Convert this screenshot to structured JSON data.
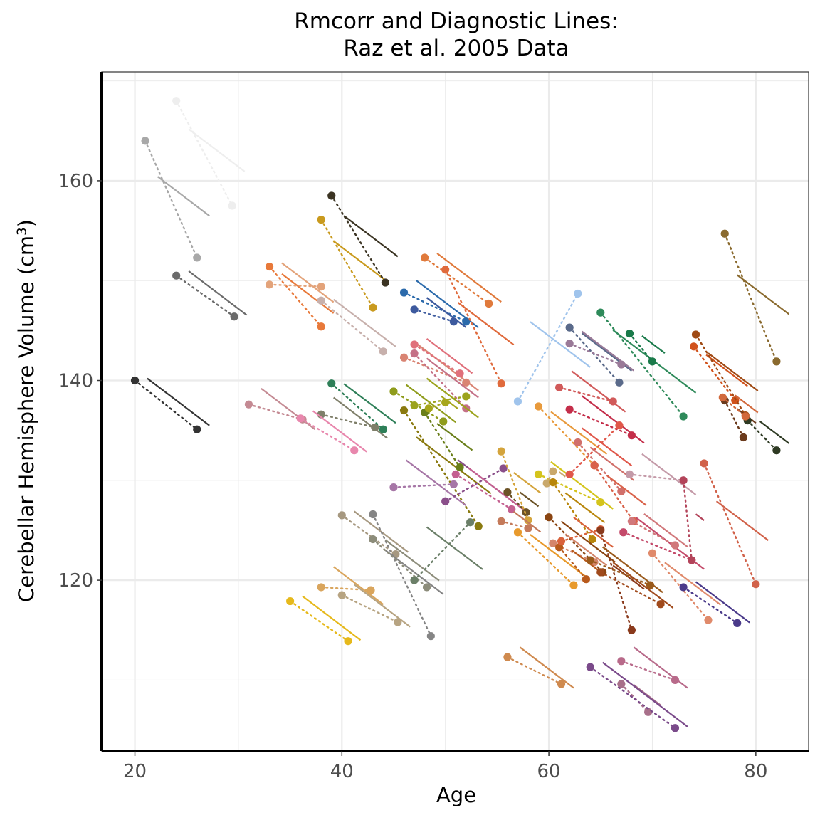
{
  "chart_data": {
    "type": "scatter",
    "title": [
      "Rmcorr and Diagnostic Lines:",
      "Raz et al. 2005 Data"
    ],
    "xlabel": "Age",
    "ylabel": "Cerebellar Hemisphere Volume (cm",
    "ylabel_sup": "3",
    "ylabel_suffix": ")",
    "xlim": [
      16.8,
      85.1
    ],
    "ylim": [
      102.9,
      170.9
    ],
    "xticks": [
      20,
      40,
      60,
      80
    ],
    "yticks": [
      120,
      140,
      160
    ],
    "grid": true,
    "legend": "none",
    "subjects": [
      {
        "color": "#333333",
        "p": [
          [
            20,
            140
          ],
          [
            26,
            135.1
          ]
        ]
      },
      {
        "color": "#a8a8a8",
        "p": [
          [
            21,
            164
          ],
          [
            26,
            152.3
          ]
        ]
      },
      {
        "color": "#eeeeee",
        "p": [
          [
            24,
            168
          ],
          [
            29.4,
            157.5
          ]
        ]
      },
      {
        "color": "#6b6b6b",
        "p": [
          [
            24,
            150.5
          ],
          [
            29.6,
            146.4
          ]
        ]
      },
      {
        "color": "#c48a93",
        "p": [
          [
            31,
            137.6
          ],
          [
            36.2,
            136.1
          ]
        ]
      },
      {
        "color": "#e8793a",
        "p": [
          [
            33,
            151.4
          ],
          [
            38,
            145.4
          ]
        ]
      },
      {
        "color": "#e3a37a",
        "p": [
          [
            33,
            149.6
          ],
          [
            38,
            149.4
          ]
        ]
      },
      {
        "color": "#d9a55d",
        "p": [
          [
            38,
            119.3
          ],
          [
            42.8,
            119
          ]
        ]
      },
      {
        "color": "#c99a1e",
        "p": [
          [
            38,
            156.1
          ],
          [
            43,
            147.3
          ]
        ]
      },
      {
        "color": "#7f7f6a",
        "p": [
          [
            38,
            136.6
          ],
          [
            43.2,
            135.3
          ]
        ]
      },
      {
        "color": "#e887ad",
        "p": [
          [
            36,
            136.2
          ],
          [
            41.2,
            133
          ]
        ]
      },
      {
        "color": "#e6b91c",
        "p": [
          [
            35,
            117.9
          ],
          [
            40.6,
            113.9
          ]
        ]
      },
      {
        "color": "#c7b0ac",
        "p": [
          [
            38,
            148
          ],
          [
            44,
            142.9
          ]
        ]
      },
      {
        "color": "#3b3423",
        "p": [
          [
            39,
            158.5
          ],
          [
            44.2,
            149.8
          ]
        ]
      },
      {
        "color": "#2e7f58",
        "p": [
          [
            39,
            139.7
          ],
          [
            44,
            135.1
          ]
        ]
      },
      {
        "color": "#b7a482",
        "p": [
          [
            40,
            118.5
          ],
          [
            45.4,
            115.8
          ]
        ]
      },
      {
        "color": "#a69880",
        "p": [
          [
            40,
            126.5
          ],
          [
            45.2,
            122.6
          ]
        ]
      },
      {
        "color": "#858585",
        "p": [
          [
            43,
            126.6
          ],
          [
            48.6,
            114.4
          ]
        ]
      },
      {
        "color": "#8c8c7a",
        "p": [
          [
            43,
            124.1
          ],
          [
            48.2,
            119.3
          ]
        ]
      },
      {
        "color": "#2b6aab",
        "p": [
          [
            46,
            148.8
          ],
          [
            52,
            145.9
          ]
        ]
      },
      {
        "color": "#3d5a9e",
        "p": [
          [
            47,
            147.1
          ],
          [
            50.8,
            145.9
          ]
        ]
      },
      {
        "color": "#e07a3c",
        "p": [
          [
            48,
            152.3
          ],
          [
            54.2,
            147.7
          ]
        ]
      },
      {
        "color": "#e06a3c",
        "p": [
          [
            50,
            151.1
          ],
          [
            55.4,
            139.7
          ]
        ]
      },
      {
        "color": "#d98473",
        "p": [
          [
            46,
            142.3
          ],
          [
            52,
            139.8
          ]
        ]
      },
      {
        "color": "#e0707b",
        "p": [
          [
            47,
            143.6
          ],
          [
            51.4,
            140.7
          ]
        ]
      },
      {
        "color": "#c47086",
        "p": [
          [
            47,
            142.7
          ],
          [
            52,
            137.2
          ]
        ]
      },
      {
        "color": "#8f9c1c",
        "p": [
          [
            45,
            138.9
          ],
          [
            49.8,
            135.9
          ]
        ]
      },
      {
        "color": "#8a7a0f",
        "p": [
          [
            46,
            137
          ],
          [
            53.2,
            125.4
          ]
        ]
      },
      {
        "color": "#9ca31c",
        "p": [
          [
            47,
            137.5
          ],
          [
            52,
            138.4
          ]
        ]
      },
      {
        "color": "#6a7f1a",
        "p": [
          [
            48,
            136.8
          ],
          [
            51.4,
            131.3
          ]
        ]
      },
      {
        "color": "#a6a61c",
        "p": [
          [
            48.4,
            137.2
          ],
          [
            50,
            137.8
          ]
        ]
      },
      {
        "color": "#a676a6",
        "p": [
          [
            45,
            129.3
          ],
          [
            50.8,
            129.6
          ]
        ]
      },
      {
        "color": "#8a4f8a",
        "p": [
          [
            50,
            127.9
          ],
          [
            55.6,
            131.2
          ]
        ]
      },
      {
        "color": "#c46090",
        "p": [
          [
            51,
            130.6
          ],
          [
            56.4,
            127.1
          ]
        ]
      },
      {
        "color": "#6b7f68",
        "p": [
          [
            47,
            120
          ],
          [
            52.4,
            125.8
          ]
        ]
      },
      {
        "color": "#6b5226",
        "p": [
          [
            56,
            128.8
          ],
          [
            57.8,
            126.8
          ]
        ]
      },
      {
        "color": "#d4a43c",
        "p": [
          [
            55.4,
            132.9
          ],
          [
            58,
            126
          ]
        ]
      },
      {
        "color": "#c47a5a",
        "p": [
          [
            55.4,
            125.9
          ],
          [
            58,
            125.2
          ]
        ]
      },
      {
        "color": "#cf8a4f",
        "p": [
          [
            56,
            112.3
          ],
          [
            61.2,
            109.6
          ]
        ]
      },
      {
        "color": "#e89a2c",
        "p": [
          [
            57,
            124.8
          ],
          [
            62.4,
            119.5
          ]
        ]
      },
      {
        "color": "#a0c4ec",
        "p": [
          [
            57,
            137.9
          ],
          [
            62.8,
            148.7
          ]
        ]
      },
      {
        "color": "#e89a3c",
        "p": [
          [
            59,
            137.4
          ],
          [
            64.4,
            131.5
          ]
        ]
      },
      {
        "color": "#d4c41c",
        "p": [
          [
            59,
            130.6
          ],
          [
            65,
            127.8
          ]
        ]
      },
      {
        "color": "#c9a86b",
        "p": [
          [
            59.8,
            129.7
          ],
          [
            60.4,
            130.9
          ]
        ]
      },
      {
        "color": "#b8860b",
        "p": [
          [
            60.4,
            129.8
          ],
          [
            64.2,
            124.1
          ]
        ]
      },
      {
        "color": "#8a4512",
        "p": [
          [
            60,
            126.3
          ],
          [
            65.2,
            120.8
          ]
        ]
      },
      {
        "color": "#d4856b",
        "p": [
          [
            60.4,
            123.7
          ],
          [
            64.4,
            121.8
          ]
        ]
      },
      {
        "color": "#b85a1c",
        "p": [
          [
            61,
            123.3
          ],
          [
            63.6,
            120.1
          ]
        ]
      },
      {
        "color": "#d9623c",
        "p": [
          [
            61.2,
            123.9
          ],
          [
            65,
            125.1
          ]
        ]
      },
      {
        "color": "#d15a5a",
        "p": [
          [
            61,
            139.3
          ],
          [
            66.2,
            137.9
          ]
        ]
      },
      {
        "color": "#c42e4a",
        "p": [
          [
            62,
            137.1
          ],
          [
            68,
            134.5
          ]
        ]
      },
      {
        "color": "#e0574a",
        "p": [
          [
            62,
            130.6
          ],
          [
            66.8,
            135.5
          ]
        ]
      },
      {
        "color": "#d1706b",
        "p": [
          [
            62.8,
            133.8
          ],
          [
            67,
            128.9
          ]
        ]
      },
      {
        "color": "#5a6a8a",
        "p": [
          [
            62,
            145.3
          ],
          [
            66.8,
            139.8
          ]
        ]
      },
      {
        "color": "#9a7a98",
        "p": [
          [
            62,
            143.7
          ],
          [
            67,
            141.6
          ]
        ]
      },
      {
        "color": "#2e8a5a",
        "p": [
          [
            65,
            146.8
          ],
          [
            73,
            136.4
          ]
        ]
      },
      {
        "color": "#1a7a4a",
        "p": [
          [
            67.8,
            144.7
          ],
          [
            70,
            141.9
          ]
        ]
      },
      {
        "color": "#c49aa8",
        "p": [
          [
            67.8,
            130.6
          ],
          [
            73,
            130
          ]
        ]
      },
      {
        "color": "#d9624a",
        "p": [
          [
            64.4,
            131.5
          ],
          [
            68.2,
            125.9
          ]
        ]
      },
      {
        "color": "#c44a6a",
        "p": [
          [
            67.2,
            124.8
          ],
          [
            73.8,
            122
          ]
        ]
      },
      {
        "color": "#d1787b",
        "p": [
          [
            68,
            125.9
          ],
          [
            72.2,
            123.5
          ]
        ]
      },
      {
        "color": "#8a3a1c",
        "p": [
          [
            65,
            125
          ],
          [
            68,
            115
          ]
        ]
      },
      {
        "color": "#e08a6b",
        "p": [
          [
            70,
            122.7
          ],
          [
            75.4,
            116
          ]
        ]
      },
      {
        "color": "#9a5a1c",
        "p": [
          [
            64,
            122
          ],
          [
            69.8,
            119.5
          ]
        ]
      },
      {
        "color": "#a04a1c",
        "p": [
          [
            65,
            120.8
          ],
          [
            70.8,
            117.6
          ]
        ]
      },
      {
        "color": "#b86a8a",
        "p": [
          [
            67,
            111.9
          ],
          [
            72.2,
            110
          ]
        ]
      },
      {
        "color": "#a8708a",
        "p": [
          [
            67,
            109.6
          ],
          [
            69.6,
            106.8
          ]
        ]
      },
      {
        "color": "#7a4a8a",
        "p": [
          [
            64,
            111.3
          ],
          [
            72.2,
            105.2
          ]
        ]
      },
      {
        "color": "#4a3a8a",
        "p": [
          [
            73,
            119.3
          ],
          [
            78.2,
            115.7
          ]
        ]
      },
      {
        "color": "#b3445a",
        "p": [
          [
            73,
            130
          ],
          [
            73.8,
            122
          ]
        ]
      },
      {
        "color": "#d1624a",
        "p": [
          [
            75,
            131.7
          ],
          [
            80,
            119.6
          ]
        ]
      },
      {
        "color": "#d1521c",
        "p": [
          [
            74,
            143.4
          ],
          [
            78,
            138
          ]
        ]
      },
      {
        "color": "#a04a14",
        "p": [
          [
            74.2,
            144.6
          ],
          [
            79,
            136.5
          ]
        ]
      },
      {
        "color": "#6b3a1c",
        "p": [
          [
            77,
            138
          ],
          [
            78.8,
            134.3
          ]
        ]
      },
      {
        "color": "#2e3a23",
        "p": [
          [
            79.2,
            136
          ],
          [
            82,
            133
          ]
        ]
      },
      {
        "color": "#8a6a2e",
        "p": [
          [
            77,
            154.7
          ],
          [
            82,
            141.9
          ]
        ]
      },
      {
        "color": "#d2693c",
        "p": [
          [
            76.8,
            138.3
          ],
          [
            79,
            136.4
          ]
        ]
      }
    ]
  }
}
